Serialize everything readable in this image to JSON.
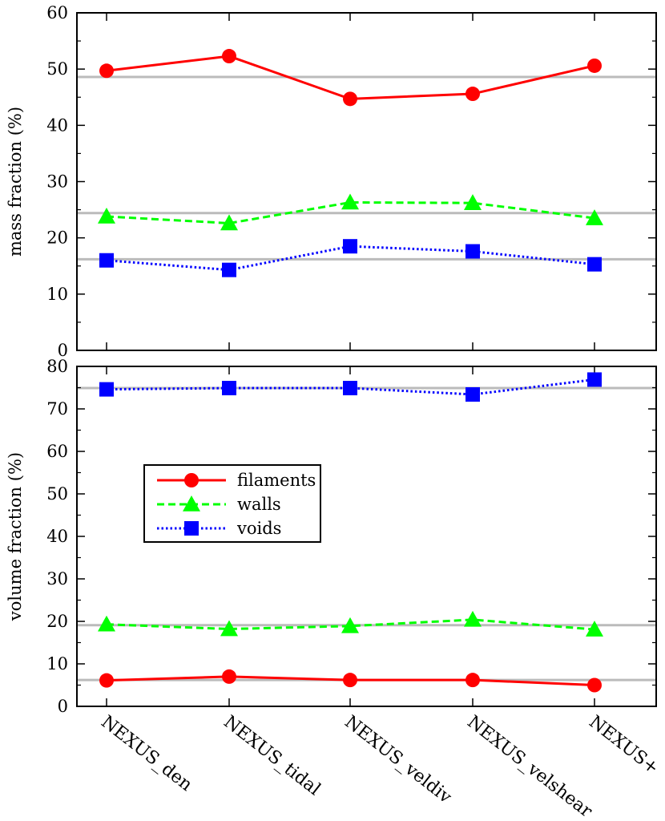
{
  "chart_data": [
    {
      "type": "line",
      "panel": "top",
      "ylabel": "mass fraction (%)",
      "ylim": [
        0,
        60
      ],
      "yticks": [
        "0",
        "10",
        "20",
        "30",
        "40",
        "50",
        "60"
      ],
      "categories": [
        "NEXUS_den",
        "NEXUS_tidal",
        "NEXUS_veldiv",
        "NEXUS_velshear",
        "NEXUS+"
      ],
      "series": [
        {
          "name": "filaments",
          "color": "#ff0000",
          "line_style": "solid",
          "marker": "circle",
          "values": [
            49.7,
            52.3,
            44.7,
            45.6,
            50.6
          ],
          "reference": 48.6
        },
        {
          "name": "walls",
          "color": "#00ff00",
          "line_style": "dashed",
          "marker": "triangle",
          "values": [
            23.8,
            22.6,
            26.3,
            26.2,
            23.5
          ],
          "reference": 24.4
        },
        {
          "name": "voids",
          "color": "#0000ff",
          "line_style": "dotted",
          "marker": "square",
          "values": [
            16.0,
            14.3,
            18.5,
            17.6,
            15.3
          ],
          "reference": 16.2
        }
      ],
      "reference_line_color": "#bbbbbb"
    },
    {
      "type": "line",
      "panel": "bottom",
      "ylabel": "volume fraction (%)",
      "ylim": [
        0,
        80
      ],
      "yticks": [
        "0",
        "10",
        "20",
        "30",
        "40",
        "50",
        "60",
        "70",
        "80"
      ],
      "categories": [
        "NEXUS_den",
        "NEXUS_tidal",
        "NEXUS_veldiv",
        "NEXUS_velshear",
        "NEXUS+"
      ],
      "series": [
        {
          "name": "filaments",
          "color": "#ff0000",
          "line_style": "solid",
          "marker": "circle",
          "values": [
            6.1,
            7.0,
            6.2,
            6.2,
            5.0
          ],
          "reference": 6.2
        },
        {
          "name": "walls",
          "color": "#00ff00",
          "line_style": "dashed",
          "marker": "triangle",
          "values": [
            19.3,
            18.2,
            18.9,
            20.4,
            18.1
          ],
          "reference": 19.1
        },
        {
          "name": "voids",
          "color": "#0000ff",
          "line_style": "dotted",
          "marker": "square",
          "values": [
            74.6,
            74.9,
            74.9,
            73.4,
            76.9
          ],
          "reference": 74.9
        }
      ],
      "reference_line_color": "#bbbbbb",
      "legend": {
        "placement": "center-left",
        "entries": [
          "filaments",
          "walls",
          "voids"
        ]
      }
    }
  ]
}
